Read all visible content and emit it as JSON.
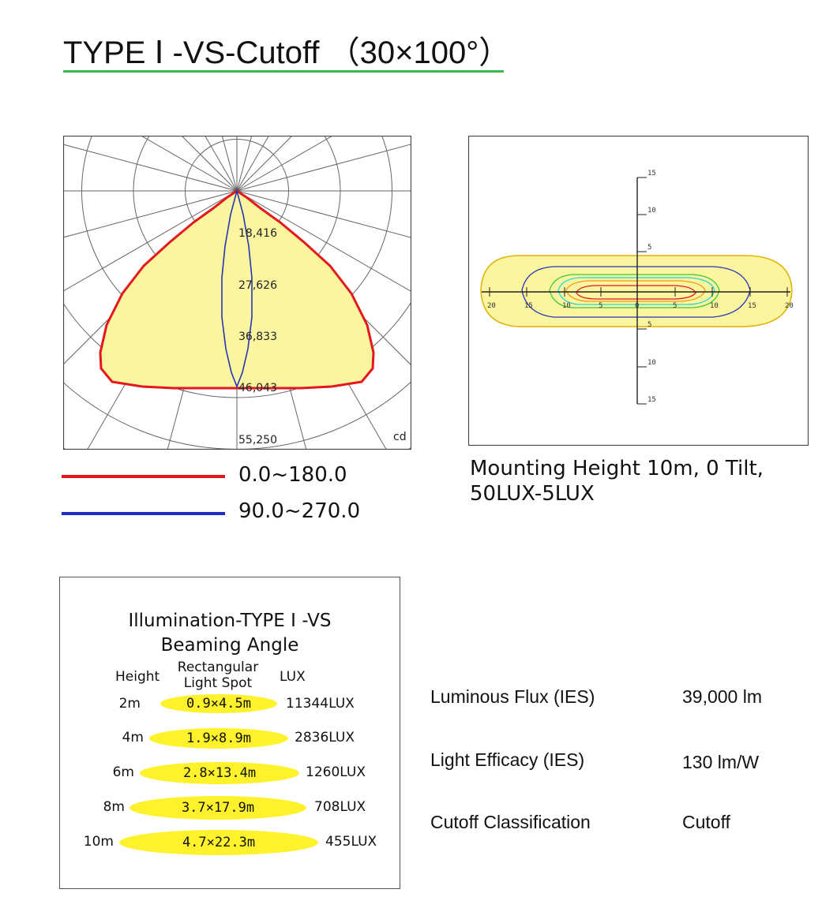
{
  "page": {
    "title": "TYPE Ⅰ -VS-Cutoff （30×100°）"
  },
  "polar": {
    "unit": "cd",
    "rings": [
      "18,416",
      "27,626",
      "36,833",
      "46,043",
      "55,250"
    ],
    "colors": {
      "c0_180": "#e3171c",
      "c90_270": "#2436b8",
      "fill": "#fcf5a0",
      "grid": "#555555"
    }
  },
  "legend": [
    {
      "label": "0.0~180.0",
      "color": "#e3171c"
    },
    {
      "label": "90.0~270.0",
      "color": "#1e2fc4"
    }
  ],
  "isolux": {
    "x_ticks": [
      "20",
      "15",
      "10",
      "5",
      "0",
      "5",
      "10",
      "15",
      "20"
    ],
    "y_ticks_top": [
      "15",
      "10",
      "5"
    ],
    "y_ticks_bottom": [
      "5",
      "10",
      "15"
    ],
    "caption_line1": "Mounting Height 10m, 0 Tilt,",
    "caption_line2": "50LUX-5LUX"
  },
  "illumination": {
    "title_line1": "Illumination-TYPE Ⅰ -VS",
    "title_line2": "Beaming Angle",
    "col_height": "Height",
    "col_spot_line1": "Rectangular",
    "col_spot_line2": "Light Spot",
    "col_lux": "LUX",
    "spot_color": "#fdf22c",
    "rows": [
      {
        "height": "2m",
        "spot": "0.9×4.5m",
        "lux": "11344LUX"
      },
      {
        "height": "4m",
        "spot": "1.9×8.9m",
        "lux": "2836LUX"
      },
      {
        "height": "6m",
        "spot": "2.8×13.4m",
        "lux": "1260LUX"
      },
      {
        "height": "8m",
        "spot": "3.7×17.9m",
        "lux": "708LUX"
      },
      {
        "height": "10m",
        "spot": "4.7×22.3m",
        "lux": "455LUX"
      }
    ]
  },
  "specs": [
    {
      "label": "Luminous Flux (IES)",
      "value": "39,000 lm"
    },
    {
      "label": "Light Efficacy (IES)",
      "value": "130 lm/W"
    },
    {
      "label": "Cutoff Classification",
      "value": "Cutoff"
    }
  ]
}
